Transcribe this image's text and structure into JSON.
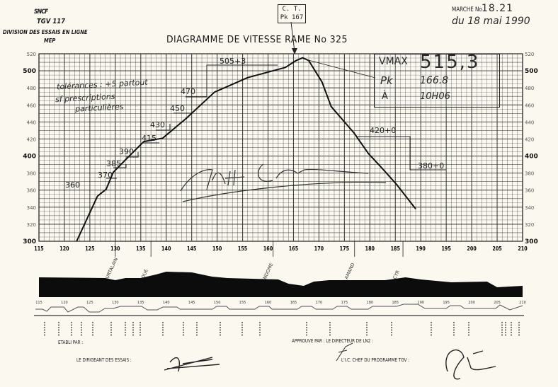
{
  "header": {
    "logo_text": "SNCF",
    "train": "TGV 117",
    "division": "DIVISION DES ESSAIS EN LIGNE",
    "unit": "MEP",
    "title": "DIAGRAMME DE VITESSE  RAME No 325",
    "ct_line1": "C. T.",
    "ct_line2": "Pk 167",
    "marche_label": "MARCHE No",
    "marche_value": "18.21",
    "date": "du 18 mai 1990"
  },
  "record_box": {
    "vmax_label": "VMAX",
    "vmax_value": "515,3",
    "pk_label": "Pk",
    "pk_value": "166.8",
    "time_label": "À",
    "time_value": "10H06"
  },
  "notes": {
    "tolerance_1": "tolérances : +5 partout",
    "tolerance_2": "sf prescriptions",
    "tolerance_3": "particulières"
  },
  "chart_data": {
    "type": "line",
    "title": "DIAGRAMME DE VITESSE  RAME No 325",
    "xlabel": "",
    "ylabel": "",
    "xlim": [
      115,
      210
    ],
    "ylim": [
      300,
      520
    ],
    "grid": true,
    "x_ticks": [
      "115",
      "120",
      "125",
      "130",
      "135",
      "140",
      "145",
      "150",
      "155",
      "160",
      "165",
      "170",
      "175",
      "180",
      "185",
      "190",
      "195",
      "200",
      "205",
      "210"
    ],
    "y_ticks": [
      "300",
      "320",
      "340",
      "360",
      "380",
      "400",
      "420",
      "440",
      "460",
      "480",
      "500",
      "520"
    ],
    "series": [
      {
        "x": [
          122.4,
          126.5,
          128.2,
          129.6,
          132.4,
          135.6,
          139.3,
          143.9,
          149.5,
          156.0,
          163.4,
          165.5,
          166.8,
          168.0,
          170.6,
          172.4,
          176.9,
          179.7,
          182.5,
          185.2,
          189.0
        ],
        "y": [
          300,
          353,
          361,
          381,
          398,
          417,
          421,
          444,
          475,
          492,
          504,
          512,
          515.3,
          512,
          487,
          458,
          427,
          403,
          385,
          367,
          338
        ]
      }
    ],
    "speed_limit_labels": [
      "360",
      "370",
      "385",
      "390",
      "415",
      "430",
      "450",
      "470",
      "505+3",
      "420+0",
      "380+0"
    ],
    "stations": [
      "COURTALAIN",
      "DROUE",
      "VENDOME",
      "St AMAND",
      "St CYR"
    ],
    "profile_ticks": [
      "115",
      "120",
      "125",
      "130",
      "135",
      "140",
      "145",
      "150",
      "155",
      "160",
      "165",
      "170",
      "175",
      "180",
      "185",
      "190",
      "195",
      "200",
      "205",
      "210"
    ]
  },
  "footer": {
    "etabli": "ETABLI PAR :",
    "approuve": "APPROUVE PAR :  LE DIRECTEUR DE LN2 :",
    "dirigeant": "LE DIRIGEANT DES ESSAIS :",
    "chef": "L'I.C. CHEF DU PROGRAMME TGV :"
  }
}
